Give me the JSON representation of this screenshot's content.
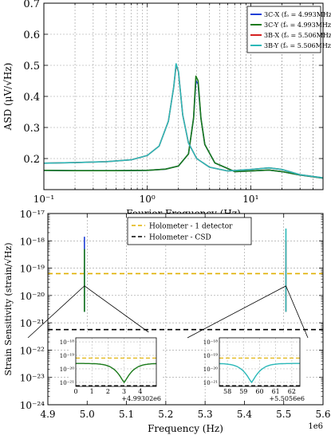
{
  "chart_data": [
    {
      "type": "line",
      "xscale": "log",
      "xlim": [
        0.1,
        50
      ],
      "ylim": [
        0.1,
        0.7
      ],
      "xlabel": "Fourier Frequency (Hz)",
      "ylabel": "ASD (μV/√Hz)",
      "xticks": [
        "10⁻¹",
        "10⁰",
        "10¹"
      ],
      "yticks": [
        "0.2",
        "0.3",
        "0.4",
        "0.5",
        "0.6",
        "0.7"
      ],
      "grid": true,
      "legend_position": "top-right",
      "series": [
        {
          "name": "3C-X (fₒ = 4.993MHz)",
          "color": "#1f3fd6",
          "x": [
            0.1,
            0.2,
            0.5,
            1,
            1.5,
            2,
            2.5,
            2.8,
            2.95,
            3.1,
            3.3,
            3.6,
            4.5,
            7,
            10,
            15,
            20,
            30,
            50
          ],
          "y": [
            0.162,
            0.161,
            0.161,
            0.162,
            0.166,
            0.176,
            0.215,
            0.33,
            0.45,
            0.44,
            0.33,
            0.245,
            0.186,
            0.158,
            0.16,
            0.163,
            0.158,
            0.147,
            0.137
          ]
        },
        {
          "name": "3C-Y (fₒ = 4.993MHz)",
          "color": "#1a7a1a",
          "x": [
            0.1,
            0.2,
            0.5,
            1,
            1.5,
            2,
            2.5,
            2.8,
            2.95,
            3.1,
            3.3,
            3.6,
            4.5,
            7,
            10,
            15,
            20,
            30,
            50
          ],
          "y": [
            0.162,
            0.161,
            0.161,
            0.162,
            0.166,
            0.176,
            0.215,
            0.33,
            0.465,
            0.45,
            0.33,
            0.245,
            0.186,
            0.158,
            0.16,
            0.163,
            0.158,
            0.147,
            0.137
          ]
        },
        {
          "name": "3B-X (fₒ = 5.506MHz)",
          "color": "#d42020",
          "x": [
            0.1,
            0.2,
            0.4,
            0.7,
            1,
            1.3,
            1.6,
            1.8,
            1.9,
            2.0,
            2.2,
            2.5,
            3,
            4,
            6,
            10,
            15,
            20,
            30,
            50
          ],
          "y": [
            0.185,
            0.187,
            0.19,
            0.196,
            0.21,
            0.24,
            0.32,
            0.43,
            0.5,
            0.48,
            0.34,
            0.25,
            0.2,
            0.172,
            0.16,
            0.165,
            0.17,
            0.165,
            0.148,
            0.138
          ]
        },
        {
          "name": "3B-Y (fₒ = 5.506MHz)",
          "color": "#2ab8b8",
          "x": [
            0.1,
            0.2,
            0.4,
            0.7,
            1,
            1.3,
            1.6,
            1.8,
            1.9,
            2.0,
            2.2,
            2.5,
            3,
            4,
            6,
            10,
            15,
            20,
            30,
            50
          ],
          "y": [
            0.185,
            0.187,
            0.19,
            0.196,
            0.21,
            0.24,
            0.32,
            0.43,
            0.505,
            0.48,
            0.34,
            0.25,
            0.2,
            0.172,
            0.16,
            0.165,
            0.17,
            0.165,
            0.148,
            0.138
          ]
        }
      ]
    },
    {
      "type": "line",
      "yscale": "log",
      "xlim": [
        4.9,
        5.6
      ],
      "ylim_exp": [
        -24,
        -17
      ],
      "xlabel": "Frequency (Hz)",
      "ylabel": "Strain Sensitivity (strain/√Hz)",
      "x_offset_text": "1e6",
      "xticks": [
        "4.9",
        "5.0",
        "5.1",
        "5.2",
        "5.3",
        "5.4",
        "5.5",
        "5.6"
      ],
      "yticks": [
        "10⁻²⁴",
        "10⁻²³",
        "10⁻²²",
        "10⁻²¹",
        "10⁻²⁰",
        "10⁻¹⁹",
        "10⁻¹⁸",
        "10⁻¹⁷"
      ],
      "grid": true,
      "legend_position": "top",
      "reference_lines": [
        {
          "name": "Holometer - 1 detector",
          "color": "#e0b000",
          "y_exp": -19.2
        },
        {
          "name": "Holometer - CSD",
          "color": "#000000",
          "y_exp": -21.25
        }
      ],
      "spikes": [
        {
          "x": 4.993,
          "color": "#1f3fd6",
          "from_exp": -20.6,
          "to_exp": -17.85
        },
        {
          "x": 4.993,
          "color": "#1a7a1a",
          "from_exp": -20.6,
          "to_exp": -18.3
        },
        {
          "x": 5.5056,
          "color": "#d42020",
          "from_exp": -20.6,
          "to_exp": -18.0
        },
        {
          "x": 5.5056,
          "color": "#2ab8b8",
          "from_exp": -20.6,
          "to_exp": -17.55
        }
      ],
      "insets": [
        {
          "color": "#1a7a1a",
          "xlim": [
            0,
            5
          ],
          "xticks": [
            "0",
            "1",
            "2",
            "3",
            "4"
          ],
          "offset_text": "+4.99302e6",
          "yticks": [
            "10⁻¹⁸",
            "10⁻¹⁹",
            "10⁻²⁰",
            "10⁻²¹"
          ],
          "dip_x": 3.0,
          "level_exp": -19.6,
          "dip_exp": -21.0
        },
        {
          "color": "#2ab8b8",
          "xlim": [
            57.5,
            62.5
          ],
          "xticks": [
            "58",
            "59",
            "60",
            "61",
            "62"
          ],
          "offset_text": "+5.5056e6",
          "yticks": [
            "10⁻¹⁸",
            "10⁻¹⁹",
            "10⁻²⁰",
            "10⁻²¹"
          ],
          "dip_x": 59.5,
          "level_exp": -19.6,
          "dip_exp": -21.0
        }
      ]
    }
  ]
}
